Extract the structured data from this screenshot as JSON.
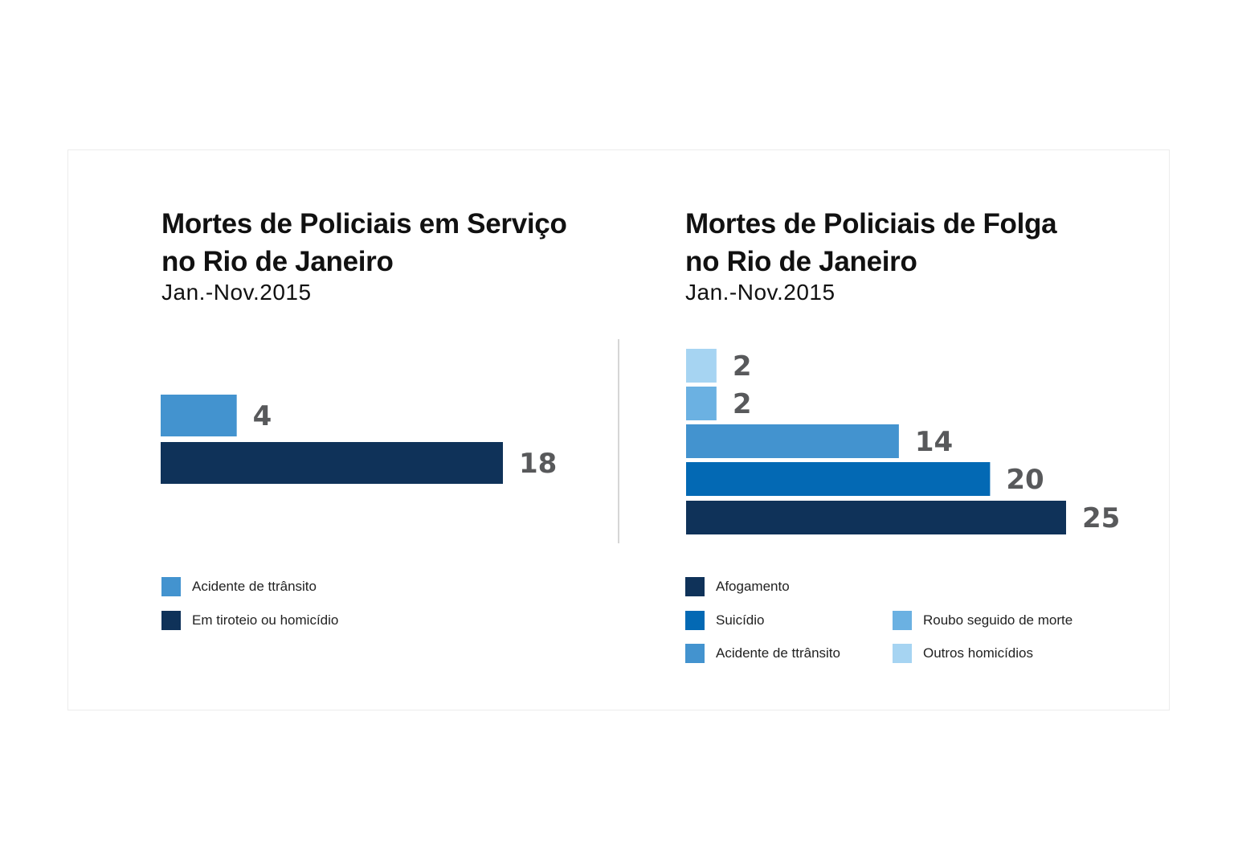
{
  "chart_data": [
    {
      "type": "bar",
      "orientation": "horizontal",
      "title": "Mortes de Policiais em Serviço no Rio de Janeiro",
      "title_lines": [
        "Mortes de Policiais em Serviço",
        "no Rio de Janeiro"
      ],
      "subtitle": "Jan.-Nov.2015",
      "categories": [
        "Acidente de ttrânsito",
        "Em tiroteio ou homicídio"
      ],
      "values": [
        4,
        18
      ],
      "colors": [
        "#4393cf",
        "#0f3259"
      ],
      "value_label_color": "#58595b",
      "legend": [
        {
          "label": "Acidente de ttrânsito",
          "color": "#4393cf"
        },
        {
          "label": "Em tiroteio ou homicídio",
          "color": "#0f3259"
        }
      ],
      "legend_placement": "bottom",
      "grid": false
    },
    {
      "type": "bar",
      "orientation": "horizontal",
      "title": "Mortes de Policiais de Folga no Rio de Janeiro",
      "title_lines": [
        "Mortes de Policiais de Folga",
        "no Rio de Janeiro"
      ],
      "subtitle": "Jan.-Nov.2015",
      "categories": [
        "Outros homicídios",
        "Roubo seguido de morte",
        "Acidente de ttrânsito",
        "Suicídio",
        "Afogamento"
      ],
      "values": [
        2,
        2,
        14,
        20,
        25
      ],
      "colors": [
        "#a6d4f2",
        "#6bb1e2",
        "#4393cf",
        "#0369b4",
        "#0f3259"
      ],
      "value_label_color": "#58595b",
      "legend": [
        {
          "label": "Afogamento",
          "color": "#0f3259"
        },
        {
          "label": "Suicídio",
          "color": "#0369b4"
        },
        {
          "label": "Acidente de ttrânsito",
          "color": "#4393cf"
        },
        {
          "label": "Roubo seguido de morte",
          "color": "#6bb1e2"
        },
        {
          "label": "Outros homicídios",
          "color": "#a6d4f2"
        }
      ],
      "legend_placement": "bottom",
      "grid": false
    }
  ]
}
